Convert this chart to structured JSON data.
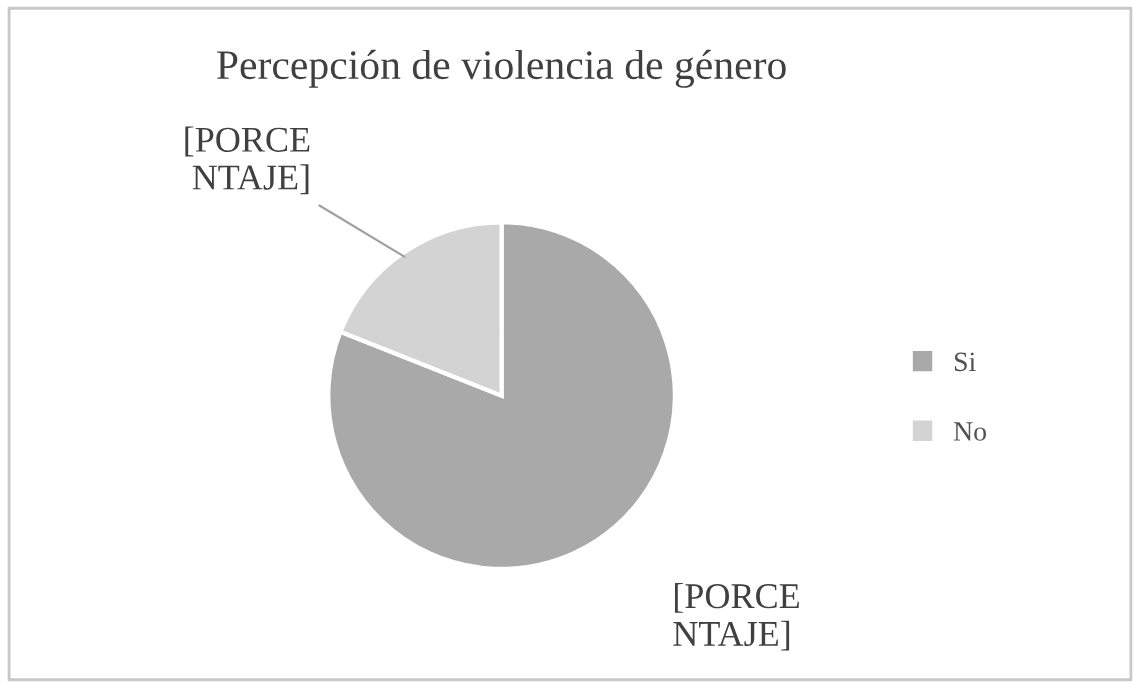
{
  "chart_data": {
    "type": "pie",
    "title": "Percepción de violencia de género",
    "categories": [
      "Si",
      "No"
    ],
    "values": [
      81,
      19
    ],
    "colors": [
      "#a9a9a9",
      "#d3d3d3"
    ],
    "value_labels": [
      "[PORCE\nNTAJE]",
      "[PORCE\nNTAJE]"
    ],
    "legend": "right"
  }
}
